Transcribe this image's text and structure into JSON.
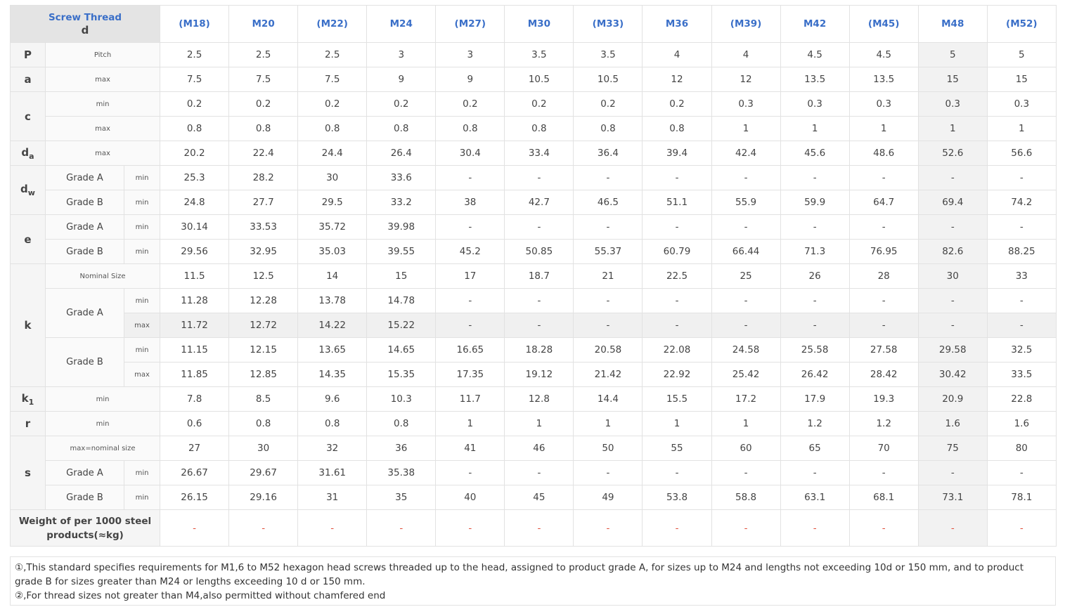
{
  "header": {
    "title": "Screw Thread",
    "symbol": "d",
    "sizes": [
      "(M18)",
      "M20",
      "(M22)",
      "M24",
      "(M27)",
      "M30",
      "(M33)",
      "M36",
      "(M39)",
      "M42",
      "(M45)",
      "M48",
      "(M52)"
    ]
  },
  "groups": [
    {
      "symbol": "P",
      "items": [
        {
          "spec": "Pitch",
          "values": [
            2.5,
            2.5,
            2.5,
            3,
            3,
            3.5,
            3.5,
            4,
            4,
            4.5,
            4.5,
            5,
            5
          ]
        }
      ]
    },
    {
      "symbol": "a",
      "items": [
        {
          "spec": "max",
          "values": [
            7.5,
            7.5,
            7.5,
            9,
            9,
            10.5,
            10.5,
            12,
            12,
            13.5,
            13.5,
            15,
            15
          ]
        }
      ]
    },
    {
      "symbol": "c",
      "items": [
        {
          "spec": "min",
          "values": [
            0.2,
            0.2,
            0.2,
            0.2,
            0.2,
            0.2,
            0.2,
            0.2,
            0.3,
            0.3,
            0.3,
            0.3,
            0.3
          ]
        },
        {
          "spec": "max",
          "values": [
            0.8,
            0.8,
            0.8,
            0.8,
            0.8,
            0.8,
            0.8,
            0.8,
            1,
            1,
            1,
            1,
            1
          ]
        }
      ]
    },
    {
      "symbol": "d",
      "subscript": "a",
      "items": [
        {
          "spec": "max",
          "values": [
            20.2,
            22.4,
            24.4,
            26.4,
            30.4,
            33.4,
            36.4,
            39.4,
            42.4,
            45.6,
            48.6,
            52.6,
            56.6
          ]
        }
      ]
    },
    {
      "symbol": "d",
      "subscript": "w",
      "items": [
        {
          "grade": "Grade A",
          "rows": [
            {
              "spec": "min",
              "values": [
                25.3,
                28.2,
                30,
                33.6,
                "-",
                "-",
                "-",
                "-",
                "-",
                "-",
                "-",
                "-",
                "-"
              ]
            }
          ]
        },
        {
          "grade": "Grade B",
          "rows": [
            {
              "spec": "min",
              "values": [
                24.8,
                27.7,
                29.5,
                33.2,
                38,
                42.7,
                46.5,
                51.1,
                55.9,
                59.9,
                64.7,
                69.4,
                74.2
              ]
            }
          ]
        }
      ]
    },
    {
      "symbol": "e",
      "items": [
        {
          "grade": "Grade A",
          "rows": [
            {
              "spec": "min",
              "values": [
                30.14,
                33.53,
                35.72,
                39.98,
                "-",
                "-",
                "-",
                "-",
                "-",
                "-",
                "-",
                "-",
                "-"
              ]
            }
          ]
        },
        {
          "grade": "Grade B",
          "rows": [
            {
              "spec": "min",
              "values": [
                29.56,
                32.95,
                35.03,
                39.55,
                45.2,
                50.85,
                55.37,
                60.79,
                66.44,
                71.3,
                76.95,
                82.6,
                88.25
              ]
            }
          ]
        }
      ]
    },
    {
      "symbol": "k",
      "items": [
        {
          "spec": "Nominal Size",
          "values": [
            11.5,
            12.5,
            14,
            15,
            17,
            18.7,
            21,
            22.5,
            25,
            26,
            28,
            30,
            33
          ]
        },
        {
          "grade": "Grade A",
          "rows": [
            {
              "spec": "min",
              "values": [
                11.28,
                12.28,
                13.78,
                14.78,
                "-",
                "-",
                "-",
                "-",
                "-",
                "-",
                "-",
                "-",
                "-"
              ]
            },
            {
              "spec": "max",
              "values": [
                11.72,
                12.72,
                14.22,
                15.22,
                "-",
                "-",
                "-",
                "-",
                "-",
                "-",
                "-",
                "-",
                "-"
              ]
            }
          ]
        },
        {
          "grade": "Grade B",
          "rows": [
            {
              "spec": "min",
              "values": [
                11.15,
                12.15,
                13.65,
                14.65,
                16.65,
                18.28,
                20.58,
                22.08,
                24.58,
                25.58,
                27.58,
                29.58,
                32.5
              ]
            },
            {
              "spec": "max",
              "values": [
                11.85,
                12.85,
                14.35,
                15.35,
                17.35,
                19.12,
                21.42,
                22.92,
                25.42,
                26.42,
                28.42,
                30.42,
                33.5
              ]
            }
          ]
        }
      ]
    },
    {
      "symbol": "k",
      "subscript": "1",
      "items": [
        {
          "spec": "min",
          "values": [
            7.8,
            8.5,
            9.6,
            10.3,
            11.7,
            12.8,
            14.4,
            15.5,
            17.2,
            17.9,
            19.3,
            20.9,
            22.8
          ]
        }
      ]
    },
    {
      "symbol": "r",
      "items": [
        {
          "spec": "min",
          "values": [
            0.6,
            0.8,
            0.8,
            0.8,
            1,
            1,
            1,
            1,
            1,
            1.2,
            1.2,
            1.6,
            1.6
          ]
        }
      ]
    },
    {
      "symbol": "s",
      "items": [
        {
          "spec": "max=nominal size",
          "values": [
            27,
            30,
            32,
            36,
            41,
            46,
            50,
            55,
            60,
            65,
            70,
            75,
            80
          ]
        },
        {
          "grade": "Grade A",
          "rows": [
            {
              "spec": "min",
              "values": [
                26.67,
                29.67,
                31.61,
                35.38,
                "-",
                "-",
                "-",
                "-",
                "-",
                "-",
                "-",
                "-",
                "-"
              ]
            }
          ]
        },
        {
          "grade": "Grade B",
          "rows": [
            {
              "spec": "min",
              "values": [
                26.15,
                29.16,
                31,
                35,
                40,
                45,
                49,
                53.8,
                58.8,
                63.1,
                68.1,
                73.1,
                78.1
              ]
            }
          ]
        }
      ]
    }
  ],
  "weight": {
    "label": "Weight of per 1000 steel products(≈kg)",
    "values": [
      "-",
      "-",
      "-",
      "-",
      "-",
      "-",
      "-",
      "-",
      "-",
      "-",
      "-",
      "-",
      "-"
    ]
  },
  "notes": [
    "①,This standard specifies requirements for M1,6 to M52 hexagon head screws threaded up to the head, assigned to product grade A, for sizes up to M24 and lengths not exceeding 10d or 150 mm, and to product grade B for sizes greater than M24 or lengths exceeding 10 d or 150 mm.",
    "②,For thread sizes not greater than M4,also permitted without chamfered end"
  ]
}
